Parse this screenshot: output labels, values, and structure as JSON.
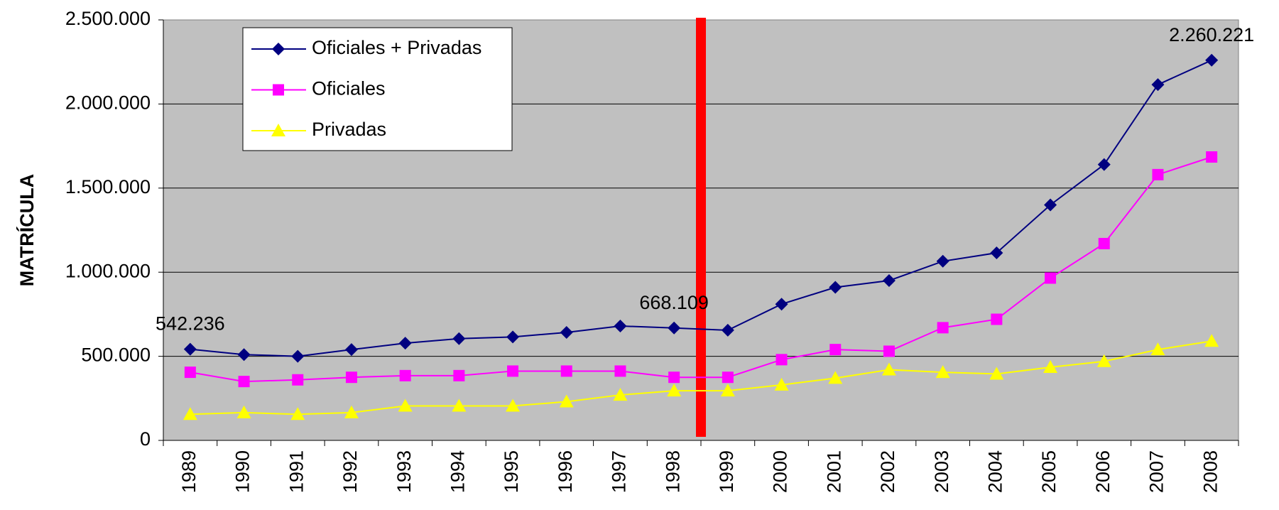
{
  "chart_data": {
    "type": "line",
    "y_label": "MATRÍCULA",
    "categories": [
      "1989",
      "1990",
      "1991",
      "1992",
      "1993",
      "1994",
      "1995",
      "1996",
      "1997",
      "1998",
      "1999",
      "2000",
      "2001",
      "2002",
      "2003",
      "2004",
      "2005",
      "2006",
      "2007",
      "2008"
    ],
    "series": [
      {
        "name": "Oficiales + Privadas",
        "color": "#000080",
        "marker": "diamond",
        "values": [
          542236,
          510000,
          500000,
          540000,
          578000,
          605000,
          615000,
          642000,
          680000,
          668109,
          655000,
          810000,
          910000,
          950000,
          1065000,
          1115000,
          1400000,
          1640000,
          2115000,
          2260221
        ],
        "value_labels": [
          "542.236",
          null,
          null,
          null,
          null,
          null,
          null,
          null,
          null,
          "668.109",
          null,
          null,
          null,
          null,
          null,
          null,
          null,
          null,
          null,
          "2.260.221"
        ]
      },
      {
        "name": "Oficiales",
        "color": "#ff00ff",
        "marker": "square",
        "values": [
          405000,
          350000,
          360000,
          375000,
          385000,
          385000,
          412000,
          412000,
          412000,
          375000,
          375000,
          480000,
          540000,
          530000,
          670000,
          720000,
          965000,
          1170000,
          1580000,
          1685000
        ]
      },
      {
        "name": "Privadas",
        "color": "#ffff00",
        "marker": "triangle",
        "values": [
          155000,
          165000,
          155000,
          165000,
          205000,
          205000,
          205000,
          230000,
          270000,
          295000,
          295000,
          330000,
          370000,
          420000,
          405000,
          395000,
          435000,
          470000,
          540000,
          590000
        ]
      }
    ],
    "ylim": [
      0,
      2500000
    ],
    "yticks": [
      0,
      {
        "value": 500000,
        "label": "500.000"
      },
      {
        "value": 1000000,
        "label": "1.000.000"
      },
      {
        "value": 1500000,
        "label": "1.500.000"
      },
      {
        "value": 2000000,
        "label": "2.000.000"
      },
      {
        "value": 2500000,
        "label": "2.500.000"
      }
    ],
    "grid": true,
    "legend": "top-left"
  }
}
